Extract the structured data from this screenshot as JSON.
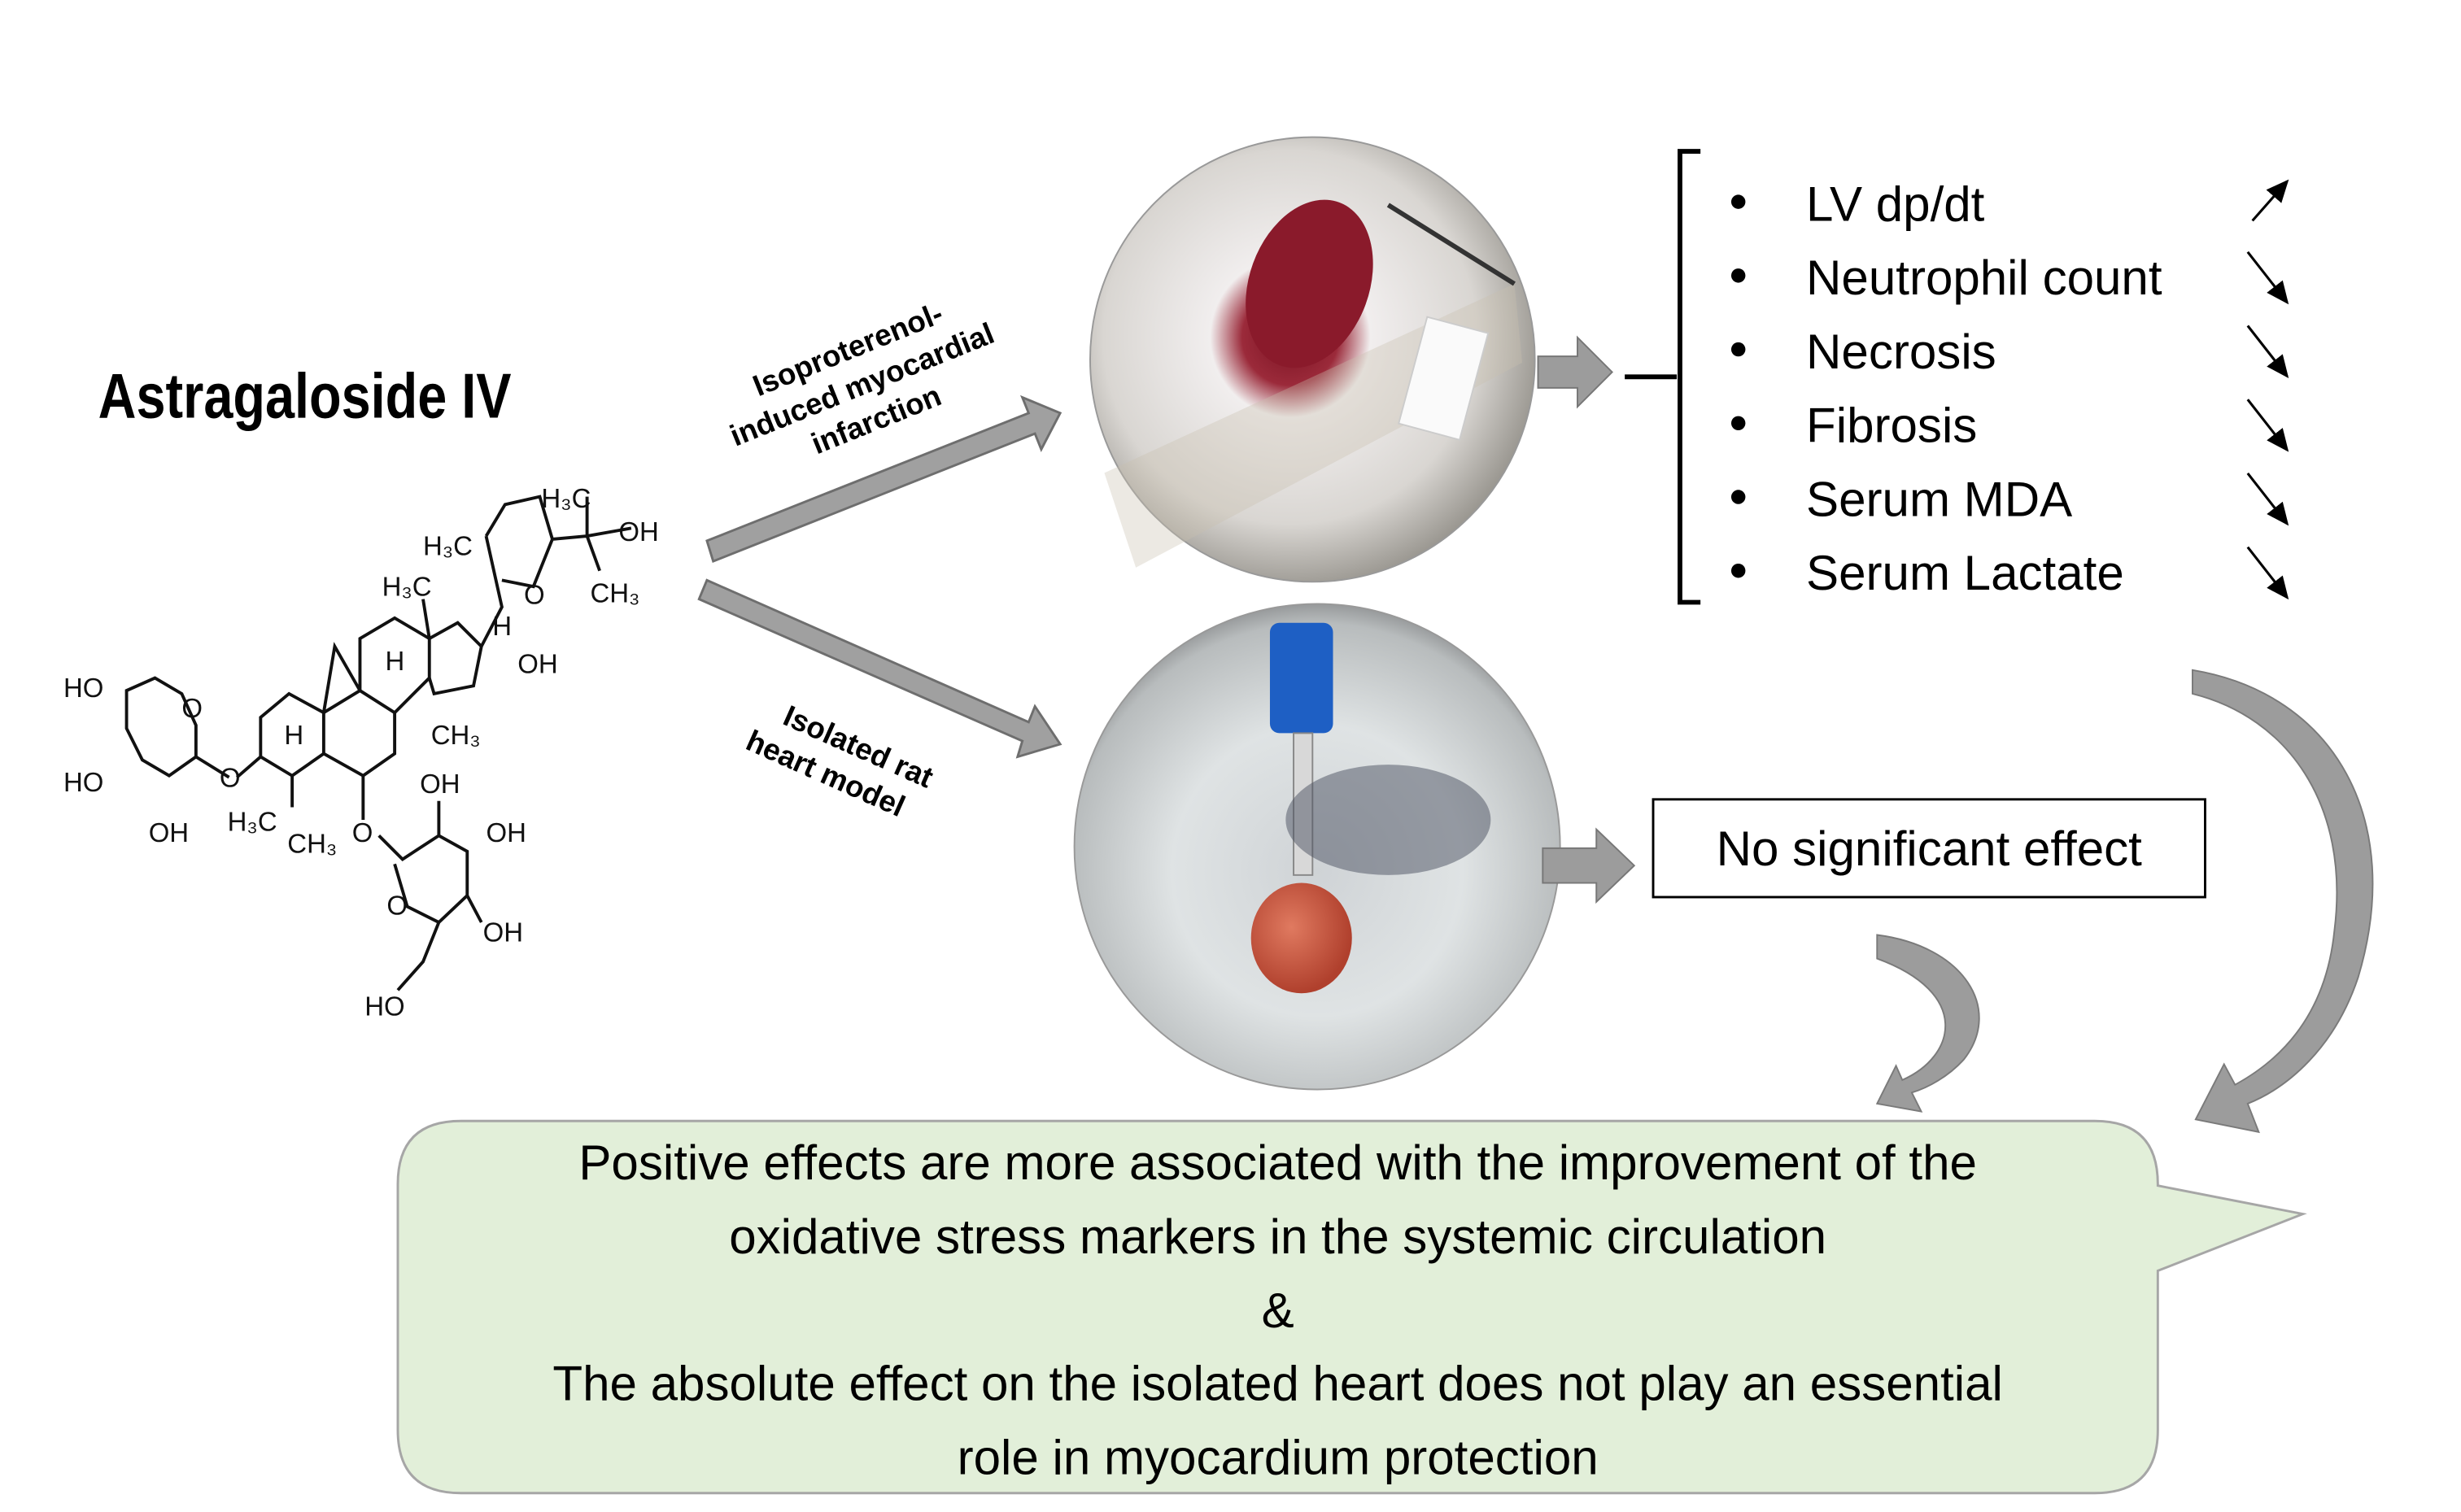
{
  "compound": {
    "name": "Astragaloside IV",
    "structure_labels": [
      "H3C",
      "OH",
      "CH3",
      "H3C",
      "O",
      "H3C",
      "H",
      "OH",
      "H",
      "CH3",
      "HO",
      "O",
      "H",
      "HO",
      "O",
      "OH",
      "H3C",
      "CH3",
      "O",
      "OH",
      "OH",
      "O",
      "OH",
      "HO"
    ]
  },
  "routes": {
    "top_label": [
      "Isoproterenol-",
      "induced myocardial",
      "infarction"
    ],
    "bottom_label": [
      "Isolated rat",
      "heart model"
    ]
  },
  "outcomes": [
    {
      "label": "LV dp/dt",
      "trend": "increase"
    },
    {
      "label": "Neutrophil count",
      "trend": "decrease"
    },
    {
      "label": "Necrosis",
      "trend": "decrease"
    },
    {
      "label": "Fibrosis",
      "trend": "decrease"
    },
    {
      "label": "Serum MDA",
      "trend": "decrease"
    },
    {
      "label": "Serum Lactate",
      "trend": "decrease"
    }
  ],
  "isolated_result": "No significant effect",
  "conclusion": [
    "Positive effects are more associated with the improvement of the",
    "oxidative stress markers in the systemic circulation",
    "&",
    "The absolute effect on the isolated heart does not play an essential",
    "role in myocardium protection"
  ],
  "colors": {
    "arrow_gray": "#8f8f8f",
    "bubble_fill": "#e2efd9",
    "bubble_stroke": "#a6a6a6"
  }
}
